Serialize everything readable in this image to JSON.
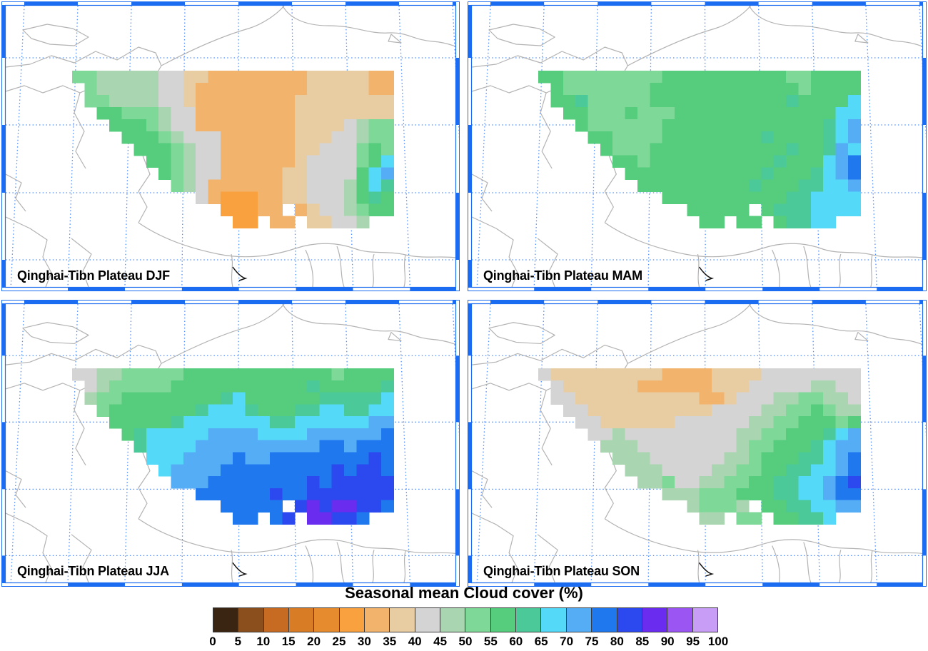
{
  "figure": {
    "title": "Seasonal mean Cloud cover (%)"
  },
  "panels": [
    {
      "id": "djf",
      "label": "Qinghai-Tibn Plateau DJF",
      "season": "DJF"
    },
    {
      "id": "mam",
      "label": "Qinghai-Tibn Plateau MAM",
      "season": "MAM"
    },
    {
      "id": "jja",
      "label": "Qinghai-Tibn Plateau JJA",
      "season": "JJA"
    },
    {
      "id": "son",
      "label": "Qinghai-Tibn Plateau SON",
      "season": "SON"
    }
  ],
  "map_style": {
    "frame_color": "#1b6cf0",
    "gridline_color": "#4d8dff",
    "coastline_color": "#b3b3b3",
    "river_mark_color": "#111111"
  },
  "chart_data": {
    "type": "heatmap",
    "title": "Seasonal mean Cloud cover (%)",
    "variable": "cloud cover",
    "units": "%",
    "region": "Qinghai-Tibetan Plateau",
    "seasons": [
      "DJF",
      "MAM",
      "JJA",
      "SON"
    ],
    "colorbar": {
      "tick_labels": [
        "0",
        "5",
        "10",
        "15",
        "20",
        "25",
        "30",
        "35",
        "40",
        "45",
        "50",
        "55",
        "60",
        "65",
        "70",
        "75",
        "80",
        "85",
        "90",
        "95",
        "100"
      ],
      "bin_size": 5,
      "colors": [
        "#3a2512",
        "#8a4f1d",
        "#c76b22",
        "#d97c26",
        "#e68c2e",
        "#f9a13e",
        "#f2b46c",
        "#e8cda2",
        "#d4d4d4",
        "#a9d6b0",
        "#7ed898",
        "#55cd7c",
        "#4cc998",
        "#55d9f8",
        "#55aef5",
        "#1f78ee",
        "#2b49ee",
        "#6a2cee",
        "#9b55f3",
        "#c79df5"
      ]
    },
    "grid_encoding": "Each season grid is 13 rows x 26 cols. '.' = outside plateau mask (no data). Characters 0-9 and A-J = color bin index i, meaning seasonal mean cloud cover in [5*i, 5*i+5) percent.",
    "grids": {
      "DJF": [
        "AA999998877666666667777766",
        ".A999998876666666667777766",
        ".AA99998876666666677777777",
        "..BBAAA9886666666677777777",
        "...BBBA98866666666777789AA",
        "....BBBA9888666666777889AA",
        ".....BBBA98866666677888ABA",
        "......BBA98866666678888ABD",
        ".......BA98866666778888BDE",
        "........A98666666778889BDC",
        "..........8655566778889BCB",
        "............55566.67889ABB",
        ".............55.66.77889.."
      ],
      "MAM": [
        "BBAAAAAAAABBBBBBBBBBAABBBB",
        ".BAAAAAAABBBBBBBBBBBBABBBB",
        ".BBCAAAAABBBBBBBBBBBCBBBBD",
        "..BBAAABAAABBBBBBBBBBBBBDD",
        "...BAAAAAABBBBBBBBBBBBBCDE",
        "....BBAAAABBBBBBBBCBBBBCDE",
        ".....BAAABBBBBBBBBBBCBBCED",
        "......BBABBBBBBBBBBCBBBDEF",
        ".......BBBBBBBBBBBCBBBCDEF",
        "........BBBBBBBBBCBBBCCDDE",
        "..........BBBBBBBBBBCCDDDD",
        "............BBBBB.BCCCDDDD",
        ".............BB.BB.BCCDD.."
      ],
      "JJA": [
        "8899AAAAABBBBBBBBBBBBABBBB",
        ".89AAAAABBBBBBBBBBBCBBBBBC",
        ".9AABBBBBBBBCDBBBBBBCCCCCD",
        "..ABBBBBBBCDDDCBBBCCDDCCDD",
        "...BBBBBCDDDDDDDCCDDDDDDEE",
        "....BCDDDDDEEEEDDDDEEEEEEF",
        ".....CDDDDEEEEEEEEEEFFEFFF",
        "......DDDEEEEFEEFFFFFFFFGF",
        ".......DEEEEFFFFFFFFFGFGGF",
        "........EEEFFFFFFFFGFGGGGG",
        "..........FFFFFFGFFGGGGGGG",
        "............FFFFF.GHGHHGGF",
        ".............FF.FG.HHGGF.."
      ],
      "SON": [
        "87777777776666777788888888",
        ".8777777666666777888889988",
        ".88777777777766788899AA998",
        "..887777777777888899AABA99",
        "...8877777788888899AABBBAB",
        "....88988888888899AABBBCDE",
        ".....999888888889AABBBCDEE",
        "......99988888899ABBBCCDEF",
        ".......999888899AABBCCDDEF",
        "........99A8899AABBCCDDEFG",
        "..........999AAABBBCCDDEFF",
        "............9AAA9.BBCCDDEE",
        ".............99.AA.BBCCD.."
      ]
    }
  }
}
